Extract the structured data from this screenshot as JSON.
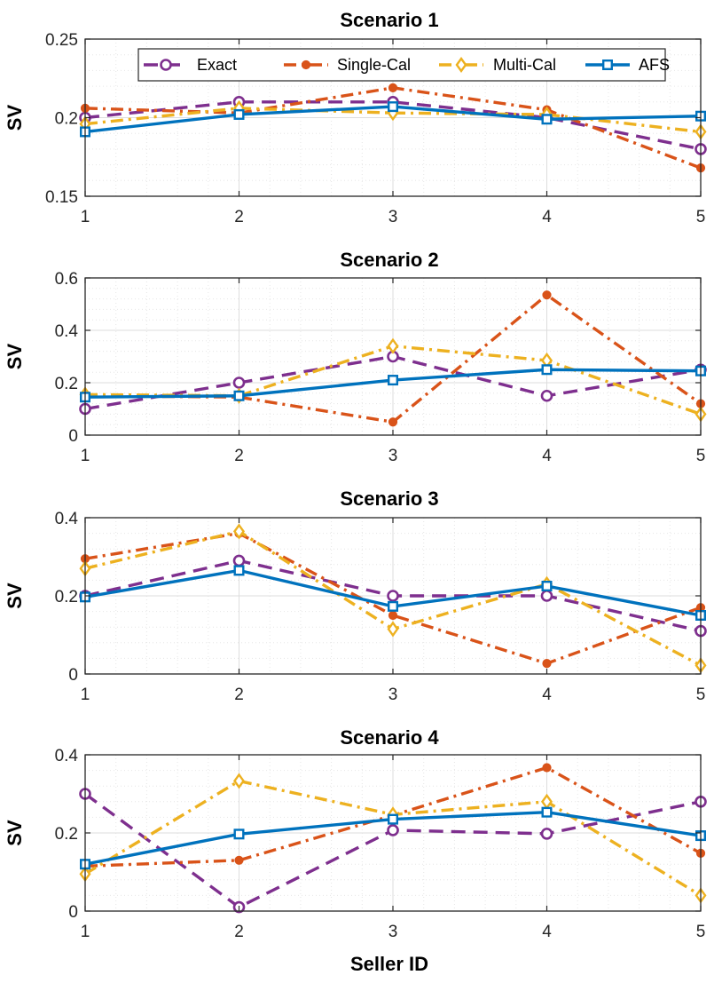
{
  "chart_data": [
    {
      "type": "line",
      "title": "Scenario 1",
      "ylabel": "SV",
      "xlabel": "",
      "x": [
        1,
        2,
        3,
        4,
        5
      ],
      "xticks": [
        "1",
        "2",
        "3",
        "4",
        "5"
      ],
      "ylim": [
        0.15,
        0.25
      ],
      "yticks": [
        "0.15",
        "0.2",
        "0.25"
      ],
      "ytick_values": [
        0.15,
        0.2,
        0.25
      ],
      "grid": true,
      "legend": {
        "location": "top",
        "entries": [
          "Exact",
          "Single-Cal",
          "Multi-Cal",
          "AFS"
        ]
      },
      "series": [
        {
          "name": "Exact",
          "values": [
            0.2,
            0.21,
            0.21,
            0.2,
            0.18
          ]
        },
        {
          "name": "Single-Cal",
          "values": [
            0.206,
            0.203,
            0.219,
            0.205,
            0.168
          ]
        },
        {
          "name": "Multi-Cal",
          "values": [
            0.196,
            0.206,
            0.203,
            0.202,
            0.191
          ]
        },
        {
          "name": "AFS",
          "values": [
            0.191,
            0.202,
            0.207,
            0.199,
            0.201
          ]
        }
      ]
    },
    {
      "type": "line",
      "title": "Scenario 2",
      "ylabel": "SV",
      "xlabel": "",
      "x": [
        1,
        2,
        3,
        4,
        5
      ],
      "xticks": [
        "1",
        "2",
        "3",
        "4",
        "5"
      ],
      "ylim": [
        0,
        0.6
      ],
      "yticks": [
        "0",
        "0.2",
        "0.4",
        "0.6"
      ],
      "ytick_values": [
        0,
        0.2,
        0.4,
        0.6
      ],
      "grid": true,
      "series": [
        {
          "name": "Exact",
          "values": [
            0.1,
            0.2,
            0.3,
            0.15,
            0.25
          ]
        },
        {
          "name": "Single-Cal",
          "values": [
            0.15,
            0.145,
            0.05,
            0.535,
            0.12
          ]
        },
        {
          "name": "Multi-Cal",
          "values": [
            0.155,
            0.15,
            0.34,
            0.285,
            0.08
          ]
        },
        {
          "name": "AFS",
          "values": [
            0.145,
            0.15,
            0.21,
            0.25,
            0.245
          ]
        }
      ]
    },
    {
      "type": "line",
      "title": "Scenario 3",
      "ylabel": "SV",
      "xlabel": "",
      "x": [
        1,
        2,
        3,
        4,
        5
      ],
      "xticks": [
        "1",
        "2",
        "3",
        "4",
        "5"
      ],
      "ylim": [
        0,
        0.4
      ],
      "yticks": [
        "0",
        "0.2",
        "0.4"
      ],
      "ytick_values": [
        0,
        0.2,
        0.4
      ],
      "grid": true,
      "series": [
        {
          "name": "Exact",
          "values": [
            0.2,
            0.29,
            0.2,
            0.2,
            0.11
          ]
        },
        {
          "name": "Single-Cal",
          "values": [
            0.295,
            0.36,
            0.15,
            0.027,
            0.17
          ]
        },
        {
          "name": "Multi-Cal",
          "values": [
            0.27,
            0.365,
            0.115,
            0.23,
            0.022
          ]
        },
        {
          "name": "AFS",
          "values": [
            0.197,
            0.265,
            0.173,
            0.225,
            0.15
          ]
        }
      ]
    },
    {
      "type": "line",
      "title": "Scenario 4",
      "ylabel": "SV",
      "xlabel": "Seller ID",
      "x": [
        1,
        2,
        3,
        4,
        5
      ],
      "xticks": [
        "1",
        "2",
        "3",
        "4",
        "5"
      ],
      "ylim": [
        0,
        0.4
      ],
      "yticks": [
        "0",
        "0.2",
        "0.4"
      ],
      "ytick_values": [
        0,
        0.2,
        0.4
      ],
      "grid": true,
      "series": [
        {
          "name": "Exact",
          "values": [
            0.3,
            0.01,
            0.207,
            0.198,
            0.28
          ]
        },
        {
          "name": "Single-Cal",
          "values": [
            0.115,
            0.13,
            0.245,
            0.367,
            0.148
          ]
        },
        {
          "name": "Multi-Cal",
          "values": [
            0.095,
            0.333,
            0.247,
            0.28,
            0.04
          ]
        },
        {
          "name": "AFS",
          "values": [
            0.12,
            0.197,
            0.235,
            0.253,
            0.193
          ]
        }
      ]
    }
  ],
  "styles": {
    "series_colors": [
      "#7E2F8E",
      "#D95319",
      "#EDB120",
      "#0072BD"
    ],
    "series_dash": [
      "16,9",
      "14,6,3,6",
      "14,6,3,6",
      ""
    ],
    "series_markers": [
      "circle",
      "dot",
      "diamond",
      "square"
    ],
    "grid_color": "#dddddd",
    "axis_color": "#262626"
  }
}
